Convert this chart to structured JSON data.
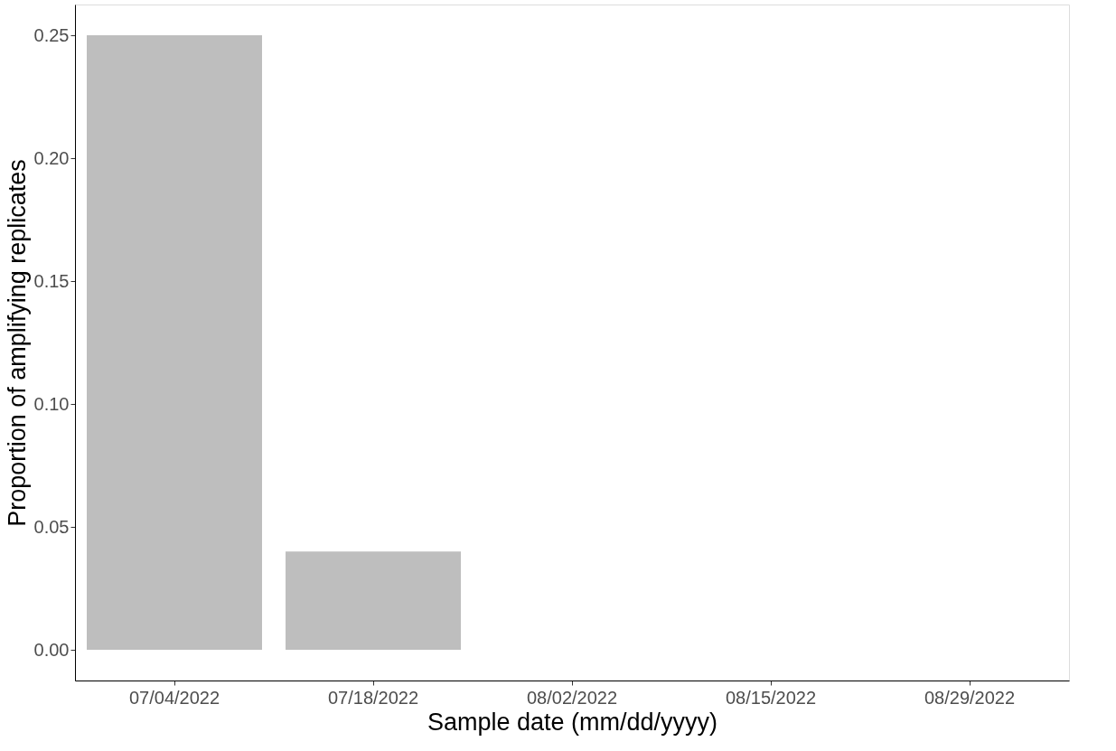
{
  "chart_data": {
    "type": "bar",
    "xlabel": "Sample date (mm/dd/yyyy)",
    "ylabel": "Proportion of amplifying replicates",
    "categories": [
      "07/04/2022",
      "07/18/2022",
      "08/02/2022",
      "08/15/2022",
      "08/29/2022"
    ],
    "values": [
      0.25,
      0.04,
      0,
      0,
      0
    ],
    "color": "#bebebe",
    "ylim": [
      -0.0125,
      0.2625
    ],
    "yticks": [
      {
        "value": 0,
        "label": "0.00"
      },
      0.05,
      {
        "value": 0.1,
        "label": "0.10"
      },
      0.15,
      {
        "value": 0.2,
        "label": "0.20"
      },
      0.25
    ],
    "grid": false
  }
}
